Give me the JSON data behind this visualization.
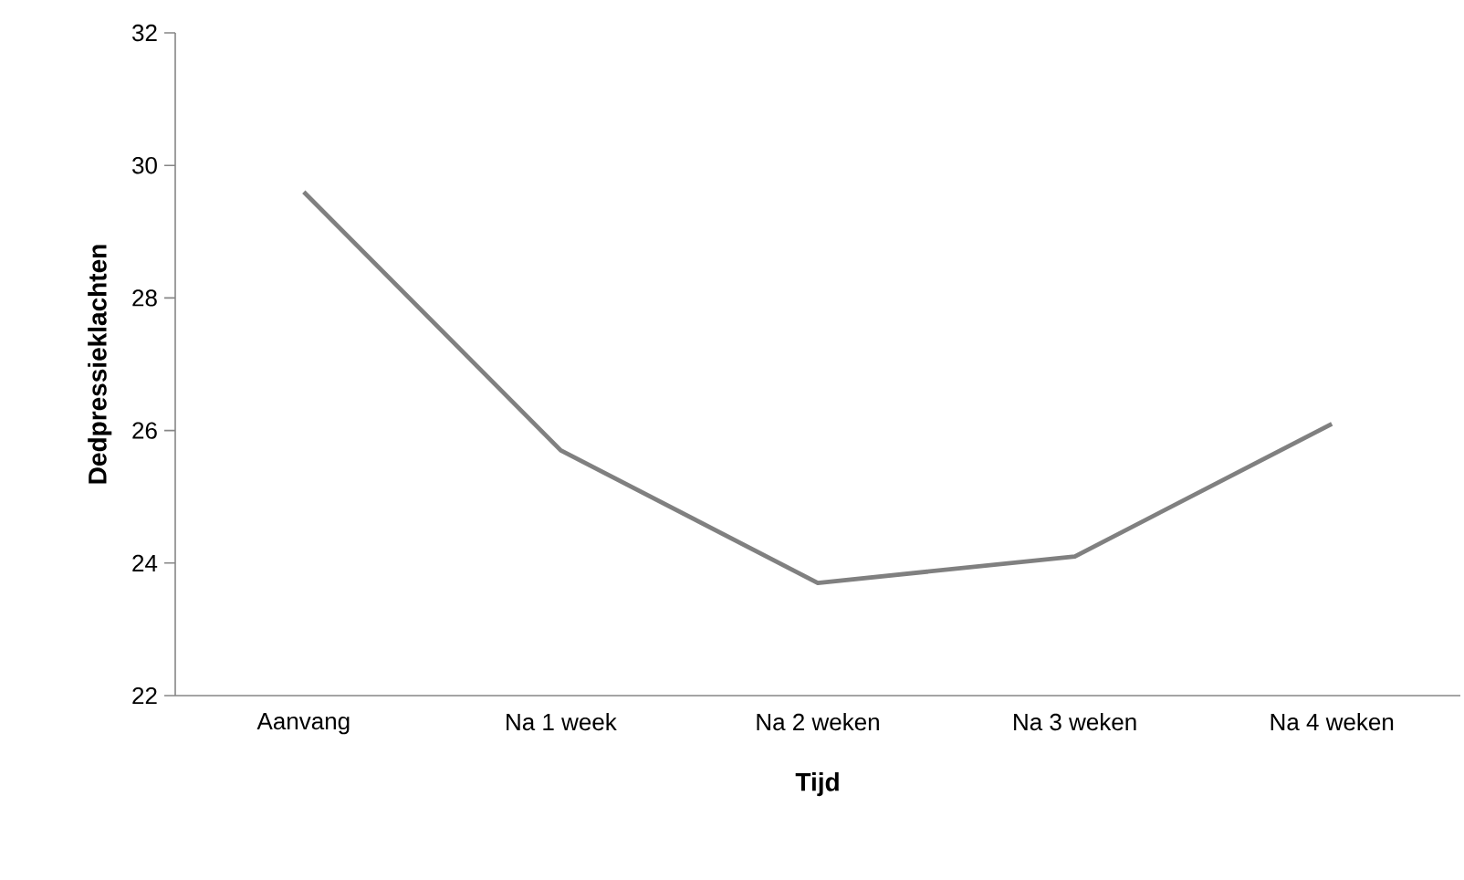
{
  "chart_data": {
    "type": "line",
    "xlabel": "Tijd",
    "ylabel": "Dedpressieklachten",
    "categories": [
      "Aanvang",
      "Na 1 week",
      "Na 2 weken",
      "Na 3 weken",
      "Na 4 weken"
    ],
    "series": [
      {
        "color": "#808080",
        "values": [
          29.6,
          25.7,
          23.7,
          24.1,
          26.1
        ]
      }
    ],
    "ylim": [
      22,
      32
    ],
    "yticks": [
      22,
      24,
      26,
      28,
      30,
      32
    ],
    "grid": false,
    "legend": false,
    "marker": "none",
    "line_style": "solid"
  }
}
